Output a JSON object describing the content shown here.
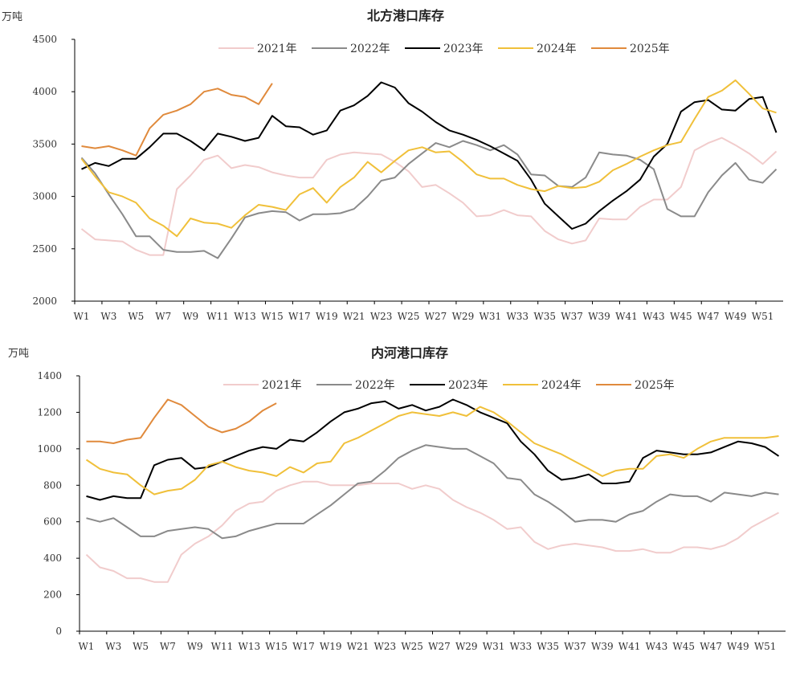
{
  "colors": {
    "2021": "#f1cccc",
    "2022": "#8a8a8a",
    "2023": "#000000",
    "2024": "#f0c03a",
    "2025": "#e08a3c"
  },
  "chart_data": [
    {
      "type": "line",
      "title": "北方港口库存",
      "ylabel": "万吨",
      "ylim": [
        2000,
        4500
      ],
      "yticks": [
        2000,
        2500,
        3000,
        3500,
        4000,
        4500
      ],
      "xtick_labels": [
        "W1",
        "W3",
        "W5",
        "W7",
        "W9",
        "W11",
        "W13",
        "W15",
        "W17",
        "W19",
        "W21",
        "W23",
        "W25",
        "W27",
        "W29",
        "W31",
        "W33",
        "W35",
        "W37",
        "W39",
        "W41",
        "W43",
        "W45",
        "W47",
        "W49",
        "W51"
      ],
      "legend_position": "top",
      "series": [
        {
          "name": "2021年",
          "key": "2021",
          "values": [
            2690,
            2590,
            2580,
            2570,
            2490,
            2440,
            2440,
            3070,
            3200,
            3350,
            3390,
            3270,
            3300,
            3280,
            3230,
            3200,
            3180,
            3180,
            3350,
            3400,
            3420,
            3410,
            3400,
            3330,
            3240,
            3090,
            3110,
            3030,
            2940,
            2810,
            2820,
            2870,
            2820,
            2810,
            2670,
            2590,
            2550,
            2580,
            2790,
            2780,
            2780,
            2900,
            2970,
            2970,
            3090,
            3440,
            3510,
            3560,
            3490,
            3410,
            3310,
            3430
          ]
        },
        {
          "name": "2022年",
          "key": "2022",
          "values": [
            3370,
            3220,
            3020,
            2830,
            2620,
            2620,
            2490,
            2470,
            2470,
            2480,
            2410,
            2600,
            2800,
            2840,
            2860,
            2850,
            2770,
            2830,
            2830,
            2840,
            2880,
            3000,
            3150,
            3180,
            3310,
            3410,
            3510,
            3470,
            3530,
            3490,
            3440,
            3490,
            3400,
            3210,
            3200,
            3100,
            3090,
            3180,
            3420,
            3400,
            3390,
            3350,
            3260,
            2880,
            2810,
            2810,
            3040,
            3200,
            3320,
            3160,
            3130,
            3260
          ]
        },
        {
          "name": "2023年",
          "key": "2023",
          "values": [
            3260,
            3320,
            3290,
            3360,
            3360,
            3470,
            3600,
            3600,
            3530,
            3440,
            3600,
            3570,
            3530,
            3560,
            3770,
            3670,
            3660,
            3590,
            3630,
            3820,
            3870,
            3960,
            4090,
            4040,
            3890,
            3810,
            3710,
            3630,
            3590,
            3540,
            3480,
            3410,
            3340,
            3160,
            2930,
            2810,
            2690,
            2740,
            2860,
            2960,
            3050,
            3160,
            3380,
            3500,
            3810,
            3900,
            3920,
            3830,
            3820,
            3930,
            3950,
            3610
          ]
        },
        {
          "name": "2024年",
          "key": "2024",
          "values": [
            3360,
            3190,
            3040,
            3000,
            2940,
            2790,
            2720,
            2620,
            2790,
            2750,
            2740,
            2700,
            2820,
            2920,
            2900,
            2870,
            3020,
            3080,
            2940,
            3090,
            3180,
            3330,
            3230,
            3340,
            3440,
            3470,
            3420,
            3430,
            3330,
            3210,
            3170,
            3170,
            3110,
            3070,
            3050,
            3100,
            3080,
            3090,
            3140,
            3250,
            3310,
            3380,
            3440,
            3490,
            3520,
            3740,
            3950,
            4010,
            4110,
            3980,
            3840,
            3800
          ]
        },
        {
          "name": "2025年",
          "key": "2025",
          "values": [
            3480,
            3460,
            3480,
            3440,
            3390,
            3650,
            3780,
            3820,
            3880,
            4000,
            4030,
            3970,
            3950,
            3880,
            4080
          ]
        }
      ]
    },
    {
      "type": "line",
      "title": "内河港口库存",
      "ylabel": "万吨",
      "ylim": [
        0,
        1400
      ],
      "yticks": [
        0,
        200,
        400,
        600,
        800,
        1000,
        1200,
        1400
      ],
      "xtick_labels": [
        "W1",
        "W3",
        "W5",
        "W7",
        "W9",
        "W11",
        "W13",
        "W15",
        "W17",
        "W19",
        "W21",
        "W23",
        "W25",
        "W27",
        "W29",
        "W31",
        "W33",
        "W35",
        "W37",
        "W39",
        "W41",
        "W43",
        "W45",
        "W47",
        "W49",
        "W51"
      ],
      "legend_position": "top",
      "series": [
        {
          "name": "2021年",
          "key": "2021",
          "values": [
            420,
            350,
            330,
            290,
            290,
            270,
            270,
            420,
            480,
            520,
            580,
            660,
            700,
            710,
            770,
            800,
            820,
            820,
            800,
            800,
            800,
            810,
            810,
            810,
            780,
            800,
            780,
            720,
            680,
            650,
            610,
            560,
            570,
            490,
            450,
            470,
            480,
            470,
            460,
            440,
            440,
            450,
            430,
            430,
            460,
            460,
            450,
            470,
            510,
            570,
            610,
            650
          ]
        },
        {
          "name": "2022年",
          "key": "2022",
          "values": [
            620,
            600,
            620,
            570,
            520,
            520,
            550,
            560,
            570,
            560,
            510,
            520,
            550,
            570,
            590,
            590,
            590,
            640,
            690,
            750,
            810,
            820,
            880,
            950,
            990,
            1020,
            1010,
            1000,
            1000,
            960,
            920,
            840,
            830,
            750,
            710,
            660,
            600,
            610,
            610,
            600,
            640,
            660,
            710,
            750,
            740,
            740,
            710,
            760,
            750,
            740,
            760,
            750
          ]
        },
        {
          "name": "2023年",
          "key": "2023",
          "values": [
            740,
            720,
            740,
            730,
            730,
            910,
            940,
            950,
            890,
            900,
            930,
            960,
            990,
            1010,
            1000,
            1050,
            1040,
            1090,
            1150,
            1200,
            1220,
            1250,
            1260,
            1220,
            1240,
            1210,
            1230,
            1270,
            1240,
            1200,
            1170,
            1140,
            1040,
            970,
            880,
            830,
            840,
            860,
            810,
            810,
            820,
            950,
            990,
            980,
            970,
            970,
            980,
            1010,
            1040,
            1030,
            1010,
            960
          ]
        },
        {
          "name": "2024年",
          "key": "2024",
          "values": [
            940,
            890,
            870,
            860,
            800,
            750,
            770,
            780,
            830,
            910,
            930,
            900,
            880,
            870,
            850,
            900,
            870,
            920,
            930,
            1030,
            1060,
            1100,
            1140,
            1180,
            1200,
            1190,
            1180,
            1200,
            1180,
            1230,
            1200,
            1150,
            1090,
            1030,
            1000,
            970,
            930,
            890,
            850,
            880,
            890,
            890,
            960,
            970,
            950,
            1000,
            1040,
            1060,
            1060,
            1060,
            1060,
            1070
          ]
        },
        {
          "name": "2025年",
          "key": "2025",
          "values": [
            1040,
            1040,
            1030,
            1050,
            1060,
            1170,
            1270,
            1240,
            1180,
            1120,
            1090,
            1110,
            1150,
            1210,
            1250
          ]
        }
      ]
    }
  ]
}
